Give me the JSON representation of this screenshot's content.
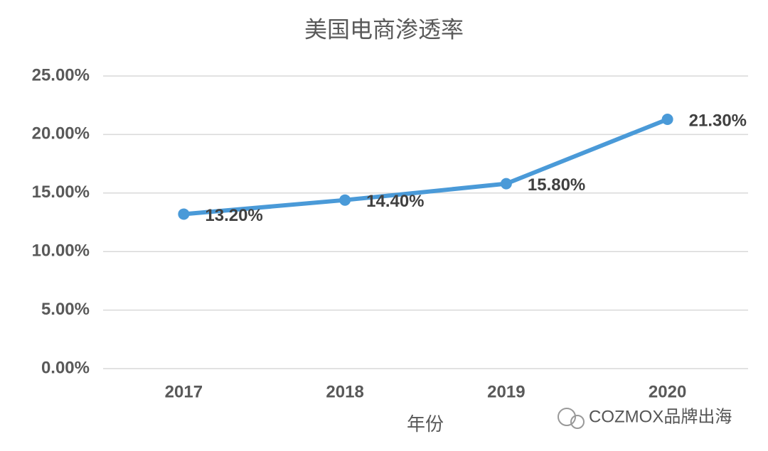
{
  "chart_data": {
    "type": "line",
    "title": "美国电商渗透率",
    "x_label": "年份",
    "categories": [
      "2017",
      "2018",
      "2019",
      "2020"
    ],
    "series": [
      {
        "name": "美国电商渗透率",
        "color": "#4a9ad8",
        "values": [
          13.2,
          14.4,
          15.8,
          21.3
        ],
        "value_labels": [
          "13.20%",
          "14.40%",
          "15.80%",
          "21.30%"
        ]
      }
    ],
    "ylim": [
      0,
      25
    ],
    "yticks": [
      {
        "value": 0,
        "label": "0.00%"
      },
      {
        "value": 5,
        "label": "5.00%"
      },
      {
        "value": 10,
        "label": "10.00%"
      },
      {
        "value": 15,
        "label": "15.00%"
      },
      {
        "value": 20,
        "label": "20.00%"
      },
      {
        "value": 25,
        "label": "25.00%"
      }
    ],
    "grid": true,
    "watermark": "COZMOX品牌出海"
  }
}
